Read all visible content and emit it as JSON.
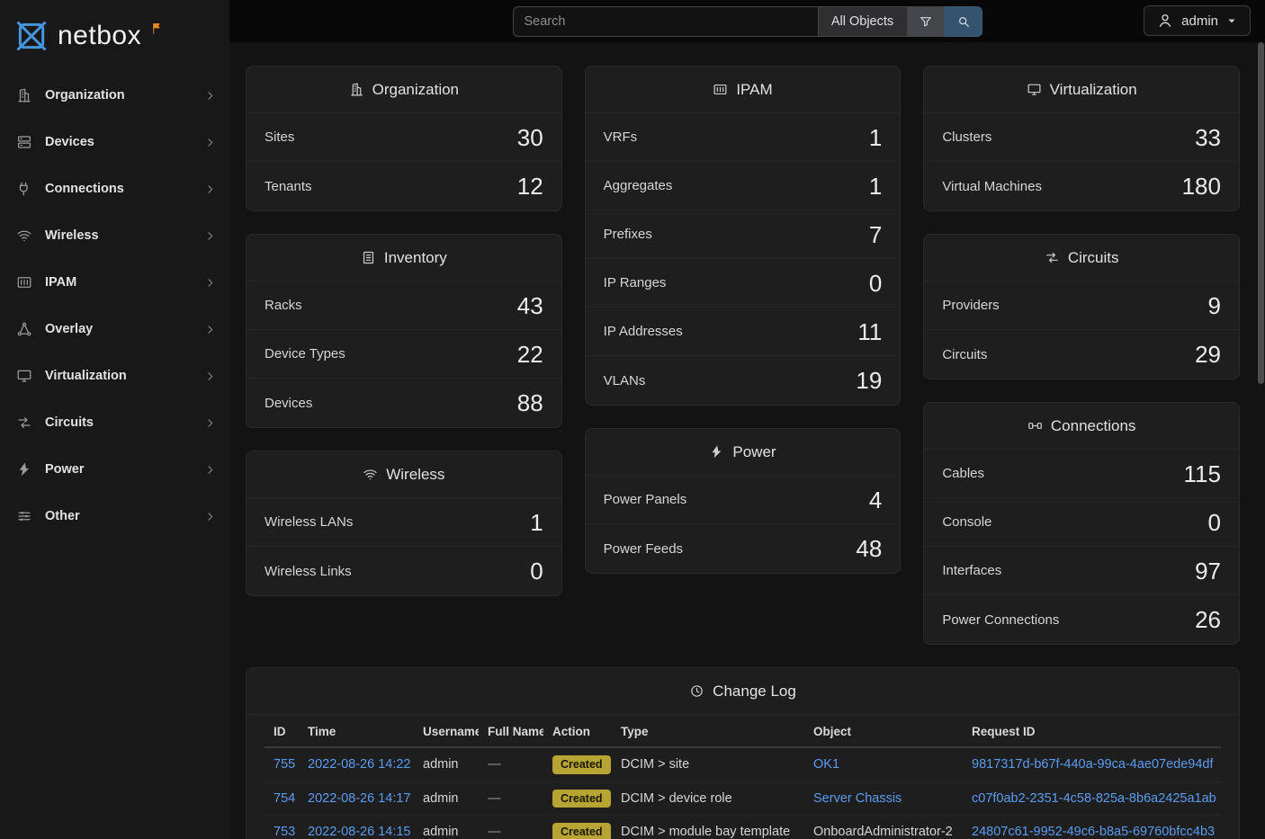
{
  "brand": {
    "name": "netbox"
  },
  "topbar": {
    "search": {
      "placeholder": "Search"
    },
    "scope_label": "All Objects",
    "user_label": "admin"
  },
  "sidebar": {
    "items": [
      {
        "label": "Organization",
        "icon": "building"
      },
      {
        "label": "Devices",
        "icon": "server"
      },
      {
        "label": "Connections",
        "icon": "plug"
      },
      {
        "label": "Wireless",
        "icon": "wifi"
      },
      {
        "label": "IPAM",
        "icon": "counter"
      },
      {
        "label": "Overlay",
        "icon": "graph"
      },
      {
        "label": "Virtualization",
        "icon": "monitor"
      },
      {
        "label": "Circuits",
        "icon": "transfer"
      },
      {
        "label": "Power",
        "icon": "bolt"
      },
      {
        "label": "Other",
        "icon": "tune"
      }
    ]
  },
  "dashboard": {
    "columns": [
      [
        {
          "title": "Organization",
          "icon": "building",
          "stats": [
            {
              "label": "Sites",
              "value": "30"
            },
            {
              "label": "Tenants",
              "value": "12"
            }
          ]
        },
        {
          "title": "Inventory",
          "icon": "inventory",
          "stats": [
            {
              "label": "Racks",
              "value": "43"
            },
            {
              "label": "Device Types",
              "value": "22"
            },
            {
              "label": "Devices",
              "value": "88"
            }
          ]
        },
        {
          "title": "Wireless",
          "icon": "wifi",
          "stats": [
            {
              "label": "Wireless LANs",
              "value": "1"
            },
            {
              "label": "Wireless Links",
              "value": "0"
            }
          ]
        }
      ],
      [
        {
          "title": "IPAM",
          "icon": "counter",
          "stats": [
            {
              "label": "VRFs",
              "value": "1"
            },
            {
              "label": "Aggregates",
              "value": "1"
            },
            {
              "label": "Prefixes",
              "value": "7"
            },
            {
              "label": "IP Ranges",
              "value": "0"
            },
            {
              "label": "IP Addresses",
              "value": "11"
            },
            {
              "label": "VLANs",
              "value": "19"
            }
          ]
        },
        {
          "title": "Power",
          "icon": "bolt",
          "stats": [
            {
              "label": "Power Panels",
              "value": "4"
            },
            {
              "label": "Power Feeds",
              "value": "48"
            }
          ]
        }
      ],
      [
        {
          "title": "Virtualization",
          "icon": "monitor",
          "stats": [
            {
              "label": "Clusters",
              "value": "33"
            },
            {
              "label": "Virtual Machines",
              "value": "180"
            }
          ]
        },
        {
          "title": "Circuits",
          "icon": "transfer",
          "stats": [
            {
              "label": "Providers",
              "value": "9"
            },
            {
              "label": "Circuits",
              "value": "29"
            }
          ]
        },
        {
          "title": "Connections",
          "icon": "cableplug",
          "stats": [
            {
              "label": "Cables",
              "value": "115"
            },
            {
              "label": "Console",
              "value": "0"
            },
            {
              "label": "Interfaces",
              "value": "97"
            },
            {
              "label": "Power Connections",
              "value": "26"
            }
          ]
        }
      ]
    ]
  },
  "changelog": {
    "title": "Change Log",
    "icon": "history",
    "columns": [
      "ID",
      "Time",
      "Username",
      "Full Name",
      "Action",
      "Type",
      "Object",
      "Request ID"
    ],
    "rows": [
      {
        "id": "755",
        "time": "2022-08-26 14:22",
        "username": "admin",
        "full_name": "—",
        "action": "Created",
        "type": "DCIM > site",
        "object": "OK1",
        "object_is_link": true,
        "request_id": "9817317d-b67f-440a-99ca-4ae07ede94df"
      },
      {
        "id": "754",
        "time": "2022-08-26 14:17",
        "username": "admin",
        "full_name": "—",
        "action": "Created",
        "type": "DCIM > device role",
        "object": "Server Chassis",
        "object_is_link": true,
        "request_id": "c07f0ab2-2351-4c58-825a-8b6a2425a1ab"
      },
      {
        "id": "753",
        "time": "2022-08-26 14:15",
        "username": "admin",
        "full_name": "—",
        "action": "Created",
        "type": "DCIM > module bay template",
        "object": "OnboardAdministrator-2",
        "object_is_link": false,
        "request_id": "24807c61-9952-49c6-b8a5-69760bfcc4b3"
      }
    ]
  },
  "colors": {
    "link_accent": "#5b9cf2",
    "badge_created_bg": "#b8a433",
    "logo_blue": "#4596df",
    "flag_orange": "#e8871f",
    "card_bg": "#1e1e1e",
    "sidebar_bg": "#181818",
    "topbar_bg": "#080808",
    "page_bg": "#131313"
  }
}
